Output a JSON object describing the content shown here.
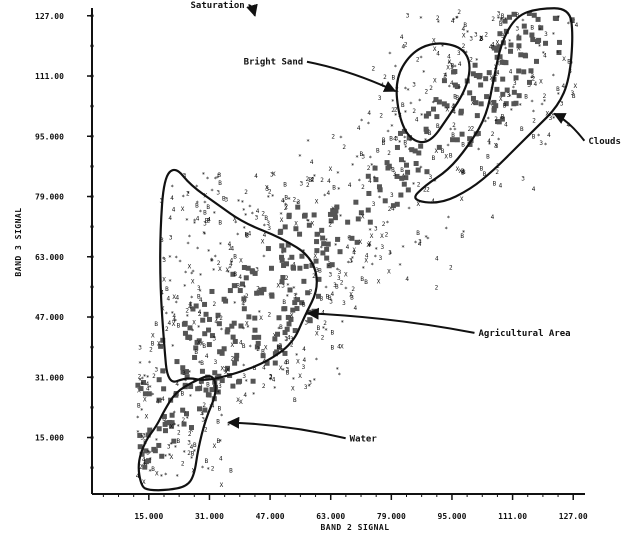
{
  "chart_data": {
    "type": "scatter",
    "xlabel": "BAND 2 SIGNAL",
    "ylabel": "BAND 3 SIGNAL",
    "xlim": [
      0,
      128
    ],
    "ylim": [
      0,
      128
    ],
    "x_ticks": [
      {
        "value": 15,
        "label": "15.000"
      },
      {
        "value": 31,
        "label": "31.000"
      },
      {
        "value": 47,
        "label": "47.000"
      },
      {
        "value": 63,
        "label": "63.000"
      },
      {
        "value": 79,
        "label": "79.000"
      },
      {
        "value": 95,
        "label": "95.000"
      },
      {
        "value": 111,
        "label": "111.00"
      },
      {
        "value": 127,
        "label": "127.00"
      }
    ],
    "y_ticks": [
      {
        "value": 15,
        "label": "15.000"
      },
      {
        "value": 31,
        "label": "31.000"
      },
      {
        "value": 47,
        "label": "47.000"
      },
      {
        "value": 63,
        "label": "63.000"
      },
      {
        "value": 79,
        "label": "79.000"
      },
      {
        "value": 95,
        "label": "95.000"
      },
      {
        "value": 111,
        "label": "111.00"
      },
      {
        "value": 127,
        "label": "127.00"
      }
    ],
    "regions": [
      {
        "label": "Water",
        "outline": [
          [
            13,
            2
          ],
          [
            12,
            8
          ],
          [
            14,
            14
          ],
          [
            17,
            18
          ],
          [
            19,
            22
          ],
          [
            22,
            27
          ],
          [
            27,
            30
          ],
          [
            32,
            32
          ],
          [
            33,
            27
          ],
          [
            30,
            20
          ],
          [
            28,
            12
          ],
          [
            27,
            5
          ],
          [
            25,
            2
          ],
          [
            20,
            1
          ],
          [
            15,
            1
          ]
        ],
        "label_at": [
          68,
          14
        ],
        "arrow_to": [
          36,
          19
        ]
      },
      {
        "label": "Agricultural Area",
        "outline": [
          [
            20,
            29
          ],
          [
            19,
            40
          ],
          [
            18,
            55
          ],
          [
            18,
            70
          ],
          [
            19,
            84
          ],
          [
            22,
            87
          ],
          [
            26,
            82
          ],
          [
            33,
            77
          ],
          [
            40,
            72
          ],
          [
            50,
            68
          ],
          [
            58,
            63
          ],
          [
            60,
            55
          ],
          [
            56,
            47
          ],
          [
            53,
            40
          ],
          [
            46,
            35
          ],
          [
            38,
            32
          ],
          [
            30,
            30
          ],
          [
            25,
            31
          ]
        ],
        "label_at": [
          102,
          42
        ],
        "arrow_to": [
          57,
          48
        ]
      },
      {
        "label": "Bright Sand",
        "outline": [
          [
            80,
            110
          ],
          [
            81,
            100
          ],
          [
            84,
            94
          ],
          [
            89,
            93
          ],
          [
            94,
            100
          ],
          [
            99,
            108
          ],
          [
            100,
            115
          ],
          [
            97,
            119
          ],
          [
            90,
            120
          ],
          [
            84,
            117
          ]
        ],
        "label_at": [
          40,
          114
        ],
        "arrow_to": [
          80,
          107
        ]
      },
      {
        "label": "Clouds",
        "outline": [
          [
            84,
            78
          ],
          [
            88,
            82
          ],
          [
            94,
            86
          ],
          [
            99,
            92
          ],
          [
            104,
            100
          ],
          [
            106,
            110
          ],
          [
            108,
            120
          ],
          [
            112,
            127
          ],
          [
            118,
            129
          ],
          [
            126,
            129
          ],
          [
            127,
            122
          ],
          [
            126,
            110
          ],
          [
            123,
            103
          ],
          [
            117,
            97
          ],
          [
            112,
            92
          ],
          [
            106,
            86
          ],
          [
            100,
            81
          ],
          [
            92,
            77
          ]
        ],
        "label_at": [
          131,
          93
        ],
        "arrow_to": [
          122,
          101
        ]
      }
    ],
    "annotations": [
      {
        "label": "Saturation",
        "label_at": [
          26,
          129
        ],
        "arrow_to": [
          43,
          127
        ]
      }
    ]
  }
}
